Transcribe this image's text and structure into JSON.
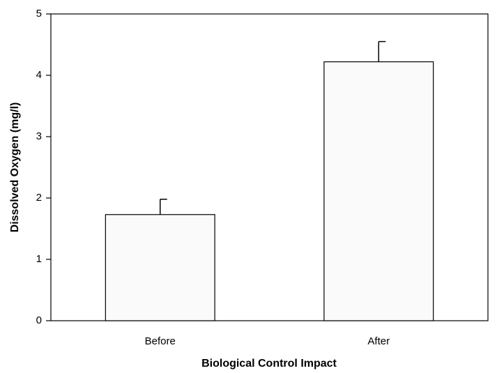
{
  "chart_data": {
    "type": "bar",
    "x_label": "Biological Control Impact",
    "y_label": "Dissolved Oxygen (mg/l)",
    "categories": [
      "Before",
      "After"
    ],
    "values": [
      1.73,
      4.22
    ],
    "errors": [
      0.25,
      0.33
    ],
    "color": "#fafafa",
    "ylim": [
      0,
      5
    ],
    "yticks": [
      0,
      1,
      2,
      3,
      4,
      5
    ],
    "grid": false
  }
}
